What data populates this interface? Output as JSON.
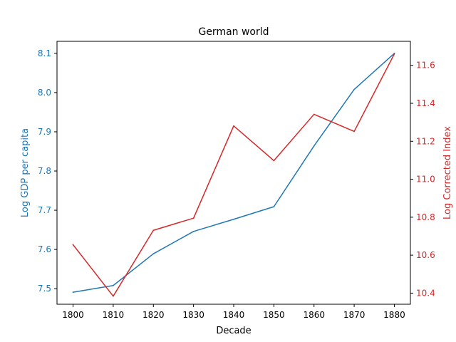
{
  "chart_data": {
    "type": "line",
    "title": "German world",
    "xlabel": "Decade",
    "ylabel_left": "Log GDP per capita",
    "ylabel_right": "Log Corrected Index",
    "x": [
      1800,
      1810,
      1820,
      1830,
      1840,
      1850,
      1860,
      1870,
      1880
    ],
    "xticks": [
      "1800",
      "1810",
      "1820",
      "1830",
      "1840",
      "1850",
      "1860",
      "1870",
      "1880"
    ],
    "xlim": [
      1796,
      1884
    ],
    "left_axis": {
      "ylim": [
        7.4603,
        8.1307
      ],
      "ticks": [
        7.5,
        7.6,
        7.7,
        7.8,
        7.9,
        8.0,
        8.1
      ],
      "tick_labels": [
        "7.5",
        "7.6",
        "7.7",
        "7.8",
        "7.9",
        "8.0",
        "8.1"
      ],
      "color": "#1f77b4"
    },
    "right_axis": {
      "ylim": [
        10.3415,
        11.7265
      ],
      "ticks": [
        10.4,
        10.6,
        10.8,
        11.0,
        11.2,
        11.4,
        11.6
      ],
      "tick_labels": [
        "10.4",
        "10.6",
        "10.8",
        "11.0",
        "11.2",
        "11.4",
        "11.6"
      ],
      "color": "#d62728"
    },
    "series": [
      {
        "axis": "left",
        "color": "#1f77b4",
        "values": [
          7.491,
          7.508,
          7.589,
          7.646,
          7.677,
          7.709,
          7.864,
          8.008,
          8.1
        ]
      },
      {
        "axis": "right",
        "color": "#d62728",
        "values": [
          10.655,
          10.384,
          10.731,
          10.795,
          11.281,
          11.098,
          11.342,
          11.252,
          11.66
        ]
      }
    ],
    "grid": false,
    "legend": "none"
  }
}
